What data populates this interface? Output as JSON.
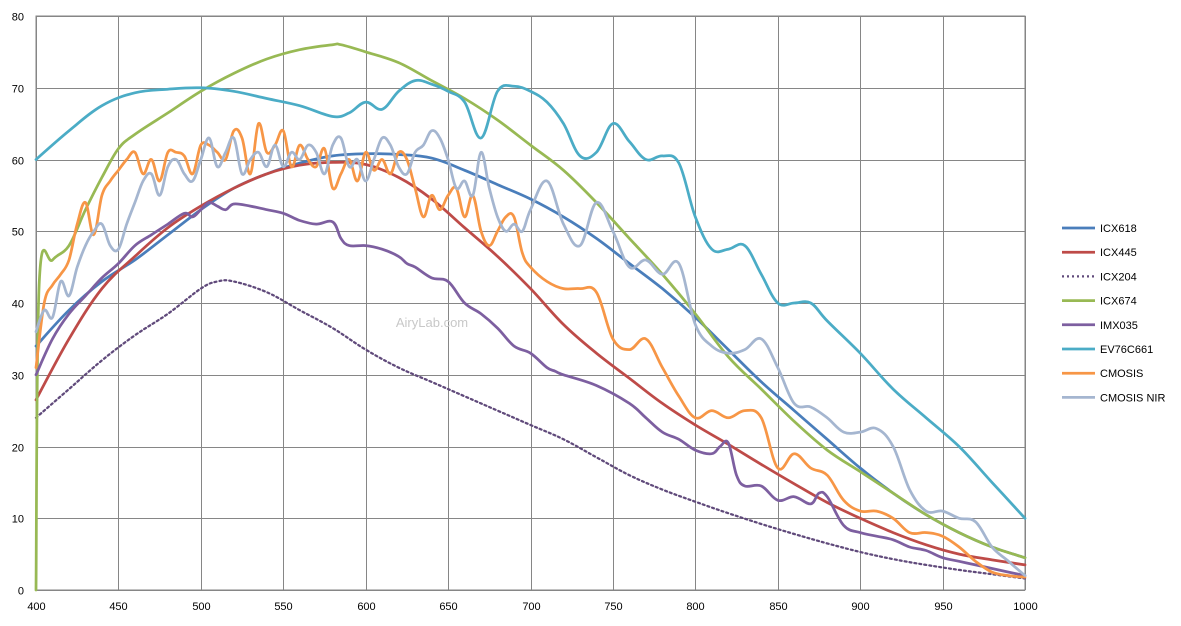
{
  "chart_data": {
    "type": "line",
    "title": "",
    "xlabel": "",
    "ylabel": "",
    "xlim": [
      400,
      1000
    ],
    "ylim": [
      0,
      80
    ],
    "xticks": [
      400,
      450,
      500,
      550,
      600,
      650,
      700,
      750,
      800,
      850,
      900,
      950,
      1000
    ],
    "yticks": [
      0,
      10,
      20,
      30,
      40,
      50,
      60,
      70,
      80
    ],
    "grid": true,
    "legend_position": "right",
    "watermark": "AiryLab.com",
    "series": [
      {
        "name": "ICX618",
        "color": "#4a7ebb",
        "dash": "",
        "x": [
          400,
          420,
          440,
          460,
          480,
          500,
          520,
          540,
          560,
          580,
          600,
          620,
          640,
          660,
          680,
          700,
          720,
          740,
          760,
          780,
          800,
          820,
          840,
          860,
          880,
          900,
          920,
          940,
          960,
          980,
          1000
        ],
        "y": [
          34,
          39,
          43,
          46,
          49.5,
          53,
          56,
          58,
          59.5,
          60.5,
          60.8,
          60.7,
          60.2,
          58.5,
          56.5,
          54.5,
          52,
          49,
          45.5,
          42,
          38,
          33.5,
          29,
          25,
          21,
          17,
          13.5,
          10.5,
          8,
          6,
          4.5
        ]
      },
      {
        "name": "ICX445",
        "color": "#be4b48",
        "dash": "",
        "x": [
          400,
          420,
          440,
          460,
          480,
          500,
          520,
          540,
          560,
          580,
          600,
          620,
          640,
          660,
          680,
          700,
          720,
          740,
          760,
          780,
          800,
          820,
          840,
          860,
          880,
          900,
          920,
          940,
          960,
          980,
          1000
        ],
        "y": [
          26.5,
          35,
          42,
          46.5,
          50.5,
          53.5,
          56,
          58,
          59.2,
          59.6,
          59.3,
          57.5,
          54.5,
          50.5,
          46.5,
          42,
          37,
          33,
          29.5,
          26,
          23,
          20.3,
          17.5,
          14.8,
          12.2,
          10,
          8,
          6.3,
          5,
          4.2,
          3.5
        ]
      },
      {
        "name": "ICX204",
        "color": "#604a7b",
        "dash": "2,3",
        "x": [
          400,
          420,
          440,
          460,
          480,
          500,
          510,
          520,
          540,
          560,
          580,
          600,
          620,
          640,
          660,
          680,
          700,
          720,
          740,
          760,
          780,
          800,
          820,
          840,
          860,
          880,
          900,
          920,
          940,
          960,
          980,
          1000
        ],
        "y": [
          24,
          28,
          32,
          35.5,
          38.5,
          42,
          43,
          43,
          41.5,
          39,
          36.5,
          33.5,
          31,
          29,
          27,
          25,
          23,
          21,
          18.5,
          16,
          14,
          12.3,
          10.7,
          9.2,
          7.8,
          6.5,
          5.3,
          4.3,
          3.5,
          2.8,
          2.2,
          1.6
        ]
      },
      {
        "name": "ICX674",
        "color": "#98b954",
        "dash": "",
        "x": [
          400,
          402,
          410,
          420,
          430,
          440,
          450,
          460,
          480,
          500,
          520,
          540,
          560,
          580,
          585,
          600,
          620,
          640,
          660,
          680,
          700,
          720,
          740,
          760,
          780,
          800,
          820,
          840,
          860,
          880,
          900,
          920,
          940,
          960,
          980,
          1000
        ],
        "y": [
          0,
          43,
          46,
          48,
          53,
          57.5,
          61.5,
          63.5,
          66.5,
          69.5,
          72,
          74,
          75.3,
          76,
          76,
          75,
          73.5,
          71,
          68.5,
          65.5,
          62,
          58.5,
          54,
          49,
          44,
          38.5,
          32.5,
          28,
          23.5,
          19.5,
          16.5,
          13.5,
          10.5,
          8,
          6,
          4.5
        ]
      },
      {
        "name": "IMX035",
        "color": "#7d5fa0",
        "dash": "",
        "x": [
          400,
          410,
          420,
          430,
          440,
          450,
          460,
          470,
          480,
          490,
          495,
          500,
          505,
          510,
          515,
          520,
          530,
          540,
          550,
          560,
          570,
          580,
          585,
          590,
          600,
          610,
          620,
          625,
          630,
          640,
          650,
          660,
          670,
          680,
          690,
          700,
          710,
          715,
          720,
          740,
          760,
          770,
          780,
          790,
          800,
          810,
          815,
          820,
          825,
          830,
          840,
          850,
          860,
          870,
          875,
          880,
          890,
          900,
          910,
          920,
          930,
          940,
          950,
          960,
          970,
          980,
          990,
          1000
        ],
        "y": [
          30,
          35,
          38.5,
          41,
          43.5,
          45.5,
          48,
          49.5,
          51,
          52.5,
          52,
          53,
          54,
          53.5,
          53,
          53.8,
          53.5,
          53,
          52.5,
          51.5,
          51,
          51.3,
          49,
          48,
          48,
          47.5,
          46.5,
          45.5,
          45,
          43.5,
          43,
          40,
          38.5,
          36.5,
          34,
          33,
          31,
          30.5,
          30,
          28.5,
          26,
          24,
          22,
          21,
          19.5,
          19,
          20,
          20.5,
          16,
          14.5,
          14.5,
          12.5,
          13,
          12,
          13.5,
          13,
          9,
          8,
          7.5,
          7,
          6,
          5.5,
          4.5,
          4,
          3.5,
          3,
          2.5,
          2
        ]
      },
      {
        "name": "EV76C661",
        "color": "#4bacc6",
        "dash": "",
        "x": [
          400,
          420,
          440,
          460,
          480,
          500,
          520,
          540,
          560,
          580,
          590,
          600,
          610,
          620,
          630,
          640,
          650,
          660,
          670,
          680,
          690,
          700,
          710,
          720,
          730,
          740,
          750,
          760,
          770,
          780,
          790,
          800,
          810,
          820,
          830,
          840,
          850,
          860,
          870,
          880,
          900,
          920,
          940,
          960,
          980,
          1000
        ],
        "y": [
          60,
          64,
          67.5,
          69.3,
          69.8,
          70,
          69.5,
          68.5,
          67.5,
          66,
          66.5,
          68,
          67,
          69.5,
          71,
          70.5,
          69.5,
          68,
          63,
          69.5,
          70.2,
          69.5,
          68,
          65,
          60.5,
          61,
          65,
          62.5,
          60,
          60.5,
          59.5,
          52,
          47.5,
          47.5,
          48,
          44,
          40,
          40,
          40,
          37.5,
          33,
          28,
          24,
          20,
          15,
          10
        ]
      },
      {
        "name": "CMOSIS",
        "color": "#f79646",
        "dash": "",
        "x": [
          400,
          405,
          410,
          415,
          420,
          425,
          430,
          435,
          440,
          445,
          450,
          455,
          460,
          465,
          470,
          475,
          480,
          485,
          490,
          495,
          500,
          505,
          510,
          515,
          520,
          525,
          530,
          535,
          540,
          545,
          550,
          555,
          560,
          565,
          570,
          575,
          580,
          585,
          590,
          595,
          600,
          605,
          610,
          615,
          620,
          625,
          630,
          635,
          640,
          645,
          650,
          655,
          660,
          665,
          670,
          675,
          680,
          685,
          690,
          695,
          700,
          710,
          720,
          730,
          740,
          750,
          760,
          770,
          780,
          790,
          800,
          810,
          820,
          830,
          840,
          850,
          860,
          870,
          880,
          890,
          900,
          910,
          920,
          930,
          940,
          950,
          960,
          970,
          980,
          990,
          1000
        ],
        "y": [
          31,
          40,
          42.5,
          44,
          46,
          51,
          54,
          49.5,
          55,
          57,
          58.5,
          60,
          61,
          58,
          60,
          57,
          61,
          61,
          60.5,
          58,
          62,
          62,
          61,
          60,
          64,
          63,
          58,
          65,
          61,
          62,
          64,
          59,
          62,
          60,
          59,
          61.5,
          56,
          58,
          60,
          57,
          61,
          58.5,
          60,
          58,
          61,
          60,
          56,
          52,
          55,
          53,
          55,
          56,
          52,
          55,
          50,
          48,
          50,
          52,
          52,
          47,
          45,
          43,
          42,
          42,
          41.5,
          35,
          33.5,
          35,
          31,
          27,
          24,
          25,
          24,
          25,
          24,
          17,
          19,
          17,
          16,
          12.5,
          11,
          11,
          10,
          8,
          8,
          7.5,
          6,
          4,
          2.5,
          2,
          1.8
        ]
      },
      {
        "name": "CMOSIS NIR",
        "color": "#a5b6d0",
        "dash": "",
        "x": [
          400,
          405,
          410,
          415,
          420,
          425,
          430,
          435,
          440,
          445,
          450,
          455,
          460,
          465,
          470,
          475,
          480,
          485,
          490,
          495,
          500,
          505,
          510,
          515,
          520,
          525,
          530,
          535,
          540,
          545,
          550,
          555,
          560,
          565,
          570,
          575,
          580,
          585,
          590,
          595,
          600,
          605,
          610,
          615,
          620,
          625,
          630,
          635,
          640,
          645,
          650,
          655,
          660,
          665,
          670,
          675,
          680,
          685,
          690,
          695,
          700,
          710,
          720,
          730,
          740,
          750,
          760,
          770,
          780,
          790,
          800,
          810,
          820,
          830,
          840,
          850,
          860,
          870,
          880,
          890,
          900,
          910,
          920,
          930,
          940,
          950,
          960,
          970,
          980,
          990,
          1000
        ],
        "y": [
          36,
          39,
          38,
          43,
          41,
          45,
          48,
          50,
          51,
          48,
          47.5,
          51,
          54,
          57,
          58,
          55,
          59,
          60,
          58,
          57,
          60,
          63,
          59,
          61,
          63,
          58,
          60,
          61,
          59,
          62,
          59,
          61,
          60,
          62,
          61,
          58,
          62,
          63,
          59,
          60,
          57,
          60,
          63,
          62,
          59,
          58,
          61,
          62,
          64,
          63,
          60,
          56,
          57,
          55,
          61,
          56,
          52,
          50,
          51,
          50,
          53,
          57,
          51,
          48,
          54,
          50,
          45,
          46,
          44,
          45.5,
          37,
          34,
          33,
          33.5,
          35,
          31,
          26,
          25.5,
          24,
          22,
          22,
          22.5,
          20,
          14,
          11,
          11,
          10,
          9.5,
          6,
          4,
          2
        ]
      }
    ]
  }
}
